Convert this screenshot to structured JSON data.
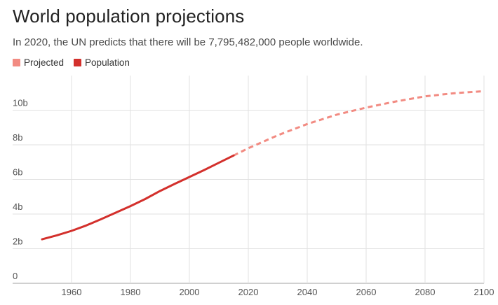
{
  "header": {
    "title": "World population projections",
    "subtitle": "In 2020, the UN predicts that there will be 7,795,482,000 people worldwide."
  },
  "colors": {
    "projected": "#f28b82",
    "population": "#d3302c",
    "grid": "#e2e2e2",
    "baseline": "#b5b5b5"
  },
  "chart_data": {
    "type": "line",
    "title": "World population projections",
    "subtitle": "In 2020, the UN predicts that there will be 7,795,482,000 people worldwide.",
    "xlabel": "",
    "ylabel": "",
    "xlim": [
      1940,
      2100
    ],
    "ylim": [
      0,
      12
    ],
    "grid": true,
    "legend_position": "top-left",
    "x_ticks": [
      1960,
      1980,
      2000,
      2020,
      2040,
      2060,
      2080,
      2100
    ],
    "x_tick_labels": [
      "1960",
      "1980",
      "2000",
      "2020",
      "2040",
      "2060",
      "2080",
      "2100"
    ],
    "y_ticks": [
      0,
      2,
      4,
      6,
      8,
      10
    ],
    "y_tick_labels": [
      "0",
      "2b",
      "4b",
      "6b",
      "8b",
      "10b"
    ],
    "series": [
      {
        "name": "Projected",
        "style": "dashed",
        "color": "#f28b82",
        "x": [
          2015,
          2020,
          2030,
          2040,
          2050,
          2060,
          2070,
          2080,
          2090,
          2100
        ],
        "y": [
          7.38,
          7.8,
          8.55,
          9.2,
          9.74,
          10.15,
          10.5,
          10.8,
          10.98,
          11.1
        ]
      },
      {
        "name": "Population",
        "style": "solid",
        "color": "#d3302c",
        "x": [
          1950,
          1955,
          1960,
          1965,
          1970,
          1975,
          1980,
          1985,
          1990,
          1995,
          2000,
          2005,
          2010,
          2015
        ],
        "y": [
          2.54,
          2.77,
          3.03,
          3.34,
          3.7,
          4.08,
          4.46,
          4.87,
          5.33,
          5.74,
          6.14,
          6.54,
          6.96,
          7.38
        ]
      }
    ]
  }
}
